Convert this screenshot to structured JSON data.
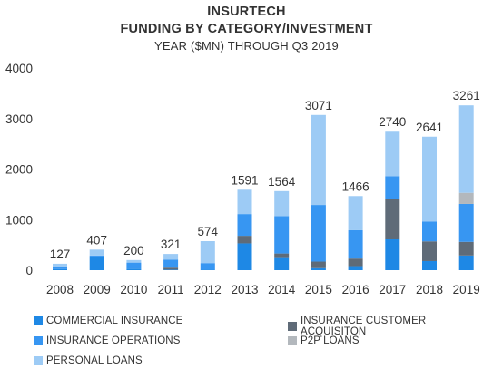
{
  "titles": {
    "line1": "INSURTECH",
    "line2": "FUNDING BY CATEGORY/INVESTMENT",
    "line3": "YEAR ($MN) THROUGH Q3 2019"
  },
  "chart_data": {
    "type": "bar",
    "stacked": true,
    "title": "INSURTECH FUNDING BY CATEGORY/INVESTMENT YEAR ($MN) THROUGH Q3 2019",
    "categories": [
      "2008",
      "2009",
      "2010",
      "2011",
      "2012",
      "2013",
      "2014",
      "2015",
      "2016",
      "2017",
      "2018",
      "2019"
    ],
    "totals": [
      127,
      407,
      200,
      321,
      574,
      1591,
      1564,
      3071,
      1466,
      2740,
      2641,
      3261
    ],
    "ylim": [
      0,
      4000
    ],
    "yticks": [
      0,
      1000,
      2000,
      3000,
      4000
    ],
    "grid": false,
    "legend_position": "bottom",
    "series": [
      {
        "name": "COMMERCIAL INSURANCE",
        "color": "#1e88e5",
        "values": [
          20,
          260,
          30,
          10,
          10,
          530,
          240,
          40,
          80,
          610,
          180,
          290
        ]
      },
      {
        "name": "INSURANCE CUSTOMER ACQUISITON",
        "color": "#5f6b78",
        "values": [
          0,
          10,
          0,
          40,
          0,
          150,
          90,
          130,
          150,
          800,
          390,
          270
        ]
      },
      {
        "name": "INSURANCE OPERATIONS",
        "color": "#3796f2",
        "values": [
          50,
          20,
          120,
          160,
          130,
          430,
          740,
          1120,
          560,
          450,
          390,
          750
        ]
      },
      {
        "name": "P2P LOANS",
        "color": "#b3b8bd",
        "values": [
          0,
          0,
          0,
          0,
          0,
          0,
          0,
          0,
          0,
          0,
          0,
          220
        ]
      },
      {
        "name": "PERSONAL LOANS",
        "color": "#9dcbf5",
        "values": [
          57,
          117,
          50,
          111,
          434,
          481,
          494,
          1781,
          676,
          880,
          1681,
          1731
        ]
      }
    ]
  }
}
